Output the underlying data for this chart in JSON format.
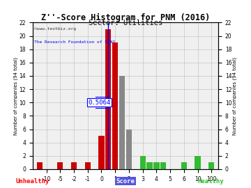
{
  "title": "Z''-Score Histogram for PNM (2016)",
  "subtitle": "Sector: Utilities",
  "watermark1": "©www.textbiz.org",
  "watermark2": "The Research Foundation of SUNY",
  "annotation": "0.5064",
  "unhealthy_label": "Unhealthy",
  "healthy_label": "Healthy",
  "score_label": "Score",
  "bar_specs": [
    [
      -11,
      1,
      "#cc0000"
    ],
    [
      -5,
      1,
      "#cc0000"
    ],
    [
      -2,
      1,
      "#cc0000"
    ],
    [
      -1,
      1,
      "#cc0000"
    ],
    [
      0,
      5,
      "#cc0000"
    ],
    [
      0.5,
      21,
      "#cc0000"
    ],
    [
      1,
      19,
      "#cc0000"
    ],
    [
      1.5,
      14,
      "#888888"
    ],
    [
      2,
      6,
      "#888888"
    ],
    [
      3,
      2,
      "#33bb33"
    ],
    [
      3.5,
      1,
      "#33bb33"
    ],
    [
      4,
      1,
      "#33bb33"
    ],
    [
      4.5,
      1,
      "#33bb33"
    ],
    [
      6,
      1,
      "#33bb33"
    ],
    [
      10,
      2,
      "#33bb33"
    ],
    [
      100,
      1,
      "#33bb33"
    ]
  ],
  "xtick_vals": [
    -10,
    -5,
    -2,
    -1,
    0,
    1,
    2,
    3,
    4,
    5,
    6,
    10,
    100
  ],
  "xtick_labels": [
    "-10",
    "-5",
    "-2",
    "-1",
    "0",
    "1",
    "2",
    "3",
    "4",
    "5",
    "6",
    "10",
    "100"
  ],
  "yticks": [
    0,
    2,
    4,
    6,
    8,
    10,
    12,
    14,
    16,
    18,
    20,
    22
  ],
  "ylim": [
    0,
    22
  ],
  "bg_color": "#f0f0f0",
  "grid_color": "#bbbbbb",
  "title_fontsize": 8.5,
  "subtitle_fontsize": 7.5,
  "tick_fontsize": 5.5,
  "ylabel_fontsize": 5.0,
  "annot_fontsize": 6.5,
  "bar_width": 0.42,
  "pnm_x_score": 0.5064
}
